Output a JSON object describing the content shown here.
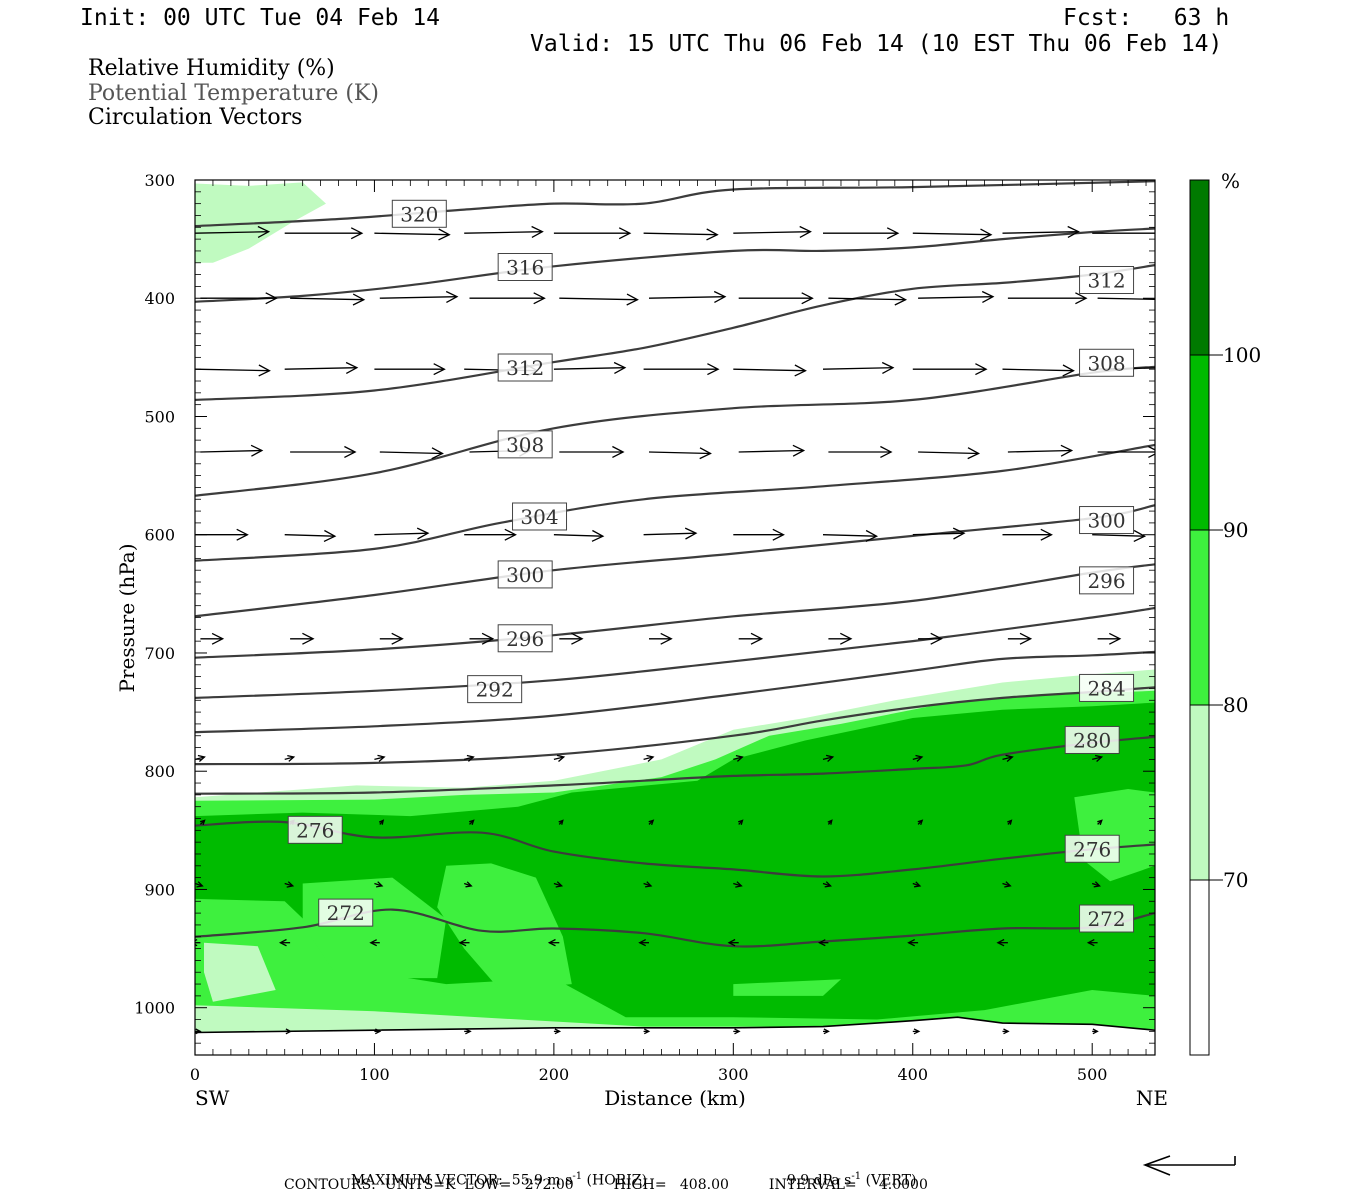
{
  "header": {
    "init": "Init: 00 UTC Tue 04 Feb 14",
    "fcst": "Fcst:   63 h",
    "valid": "Valid: 15 UTC Thu 06 Feb 14 (10 EST Thu 06 Feb 14)"
  },
  "legend": {
    "line1": "Relative Humidity (%)",
    "line2": "Potential Temperature (K)",
    "line3": "Circulation Vectors"
  },
  "footer": {
    "max_vector_label": "MAXIMUM VECTOR:",
    "horiz": "55.9 m s",
    "horiz_sup": "-1",
    "horiz_unit": "(HORIZ)",
    "vert": "9.9 dPa s",
    "vert_sup": "-1",
    "vert_unit": "(VERT)",
    "contours": "CONTOURS:  UNITS=K  LOW=   272.00         HIGH=   408.00         INTERVAL=     4.0000"
  },
  "colors": {
    "rh70": "#c0fac0",
    "rh80": "#3ef03e",
    "rh90": "#00bb00",
    "rh100": "#007a00",
    "theta_line": "#3c3c3c",
    "vector": "#000000"
  },
  "chart_data": {
    "type": "cross-section",
    "xlabel": "Distance (km)",
    "ylabel": "Pressure (hPa)",
    "x_left_label": "SW",
    "x_right_label": "NE",
    "xlim": [
      0,
      535
    ],
    "ylim": [
      1040,
      300
    ],
    "x_ticks": [
      0,
      100,
      200,
      300,
      400,
      500
    ],
    "y_ticks": [
      300,
      400,
      500,
      600,
      700,
      800,
      900,
      1000
    ],
    "colorbar": {
      "unit": "%",
      "levels": [
        70,
        80,
        90,
        100
      ],
      "colors": [
        "#ffffff",
        "#c0fac0",
        "#3ef03e",
        "#00bb00",
        "#007a00"
      ]
    },
    "surface": [
      [
        0,
        1021
      ],
      [
        100,
        1019
      ],
      [
        200,
        1017
      ],
      [
        300,
        1017
      ],
      [
        350,
        1016
      ],
      [
        400,
        1011
      ],
      [
        425,
        1008
      ],
      [
        450,
        1013
      ],
      [
        500,
        1014
      ],
      [
        535,
        1019
      ]
    ],
    "rh_regions": [
      {
        "level": 70,
        "points": [
          [
            0,
            303
          ],
          [
            30,
            305
          ],
          [
            60,
            302
          ],
          [
            73,
            320
          ],
          [
            55,
            335
          ],
          [
            30,
            358
          ],
          [
            10,
            370
          ],
          [
            0,
            370
          ]
        ]
      },
      {
        "level": 70,
        "points": [
          [
            0,
            822
          ],
          [
            90,
            812
          ],
          [
            150,
            814
          ],
          [
            200,
            808
          ],
          [
            260,
            790
          ],
          [
            300,
            765
          ],
          [
            340,
            755
          ],
          [
            390,
            740
          ],
          [
            450,
            725
          ],
          [
            500,
            718
          ],
          [
            535,
            714
          ],
          [
            535,
            1022
          ],
          [
            200,
            1018
          ],
          [
            0,
            1022
          ]
        ]
      },
      {
        "level": 80,
        "points": [
          [
            0,
            825
          ],
          [
            100,
            824
          ],
          [
            150,
            820
          ],
          [
            200,
            818
          ],
          [
            260,
            805
          ],
          [
            290,
            790
          ],
          [
            320,
            770
          ],
          [
            360,
            760
          ],
          [
            420,
            742
          ],
          [
            480,
            735
          ],
          [
            535,
            732
          ],
          [
            535,
            1018
          ],
          [
            400,
            1016
          ],
          [
            250,
            1016
          ],
          [
            100,
            1003
          ],
          [
            0,
            998
          ]
        ]
      },
      {
        "level": 90,
        "points": [
          [
            0,
            838
          ],
          [
            60,
            835
          ],
          [
            120,
            838
          ],
          [
            180,
            830
          ],
          [
            210,
            818
          ],
          [
            280,
            808
          ],
          [
            300,
            790
          ],
          [
            340,
            774
          ],
          [
            400,
            755
          ],
          [
            450,
            748
          ],
          [
            500,
            745
          ],
          [
            535,
            742
          ],
          [
            535,
            990
          ],
          [
            500,
            985
          ],
          [
            440,
            1002
          ],
          [
            380,
            1010
          ],
          [
            300,
            1008
          ],
          [
            240,
            1008
          ],
          [
            200,
            975
          ],
          [
            140,
            980
          ],
          [
            90,
            968
          ],
          [
            50,
            910
          ],
          [
            0,
            908
          ]
        ]
      },
      {
        "level": 80,
        "points": [
          [
            60,
            895
          ],
          [
            110,
            890
          ],
          [
            140,
            925
          ],
          [
            135,
            975
          ],
          [
            80,
            975
          ],
          [
            60,
            930
          ]
        ]
      },
      {
        "level": 80,
        "points": [
          [
            140,
            880
          ],
          [
            165,
            878
          ],
          [
            190,
            890
          ],
          [
            205,
            940
          ],
          [
            210,
            980
          ],
          [
            170,
            985
          ],
          [
            150,
            950
          ],
          [
            135,
            915
          ]
        ]
      },
      {
        "level": 70,
        "points": [
          [
            5,
            945
          ],
          [
            35,
            948
          ],
          [
            45,
            985
          ],
          [
            10,
            995
          ],
          [
            5,
            970
          ]
        ]
      },
      {
        "level": 80,
        "points": [
          [
            490,
            822
          ],
          [
            520,
            815
          ],
          [
            535,
            818
          ],
          [
            535,
            880
          ],
          [
            510,
            893
          ],
          [
            495,
            875
          ]
        ]
      },
      {
        "level": 80,
        "points": [
          [
            300,
            980
          ],
          [
            360,
            976
          ],
          [
            350,
            990
          ],
          [
            300,
            990
          ]
        ]
      }
    ],
    "theta_lines": [
      {
        "value": 272,
        "points": [
          [
            0,
            940
          ],
          [
            60,
            932
          ],
          [
            110,
            917
          ],
          [
            160,
            935
          ],
          [
            200,
            933
          ],
          [
            250,
            937
          ],
          [
            300,
            948
          ],
          [
            350,
            944
          ],
          [
            400,
            939
          ],
          [
            450,
            933
          ],
          [
            500,
            932
          ],
          [
            535,
            920
          ]
        ]
      },
      {
        "value": 276,
        "points": [
          [
            0,
            846
          ],
          [
            50,
            843
          ],
          [
            100,
            856
          ],
          [
            160,
            852
          ],
          [
            200,
            868
          ],
          [
            250,
            878
          ],
          [
            300,
            883
          ],
          [
            350,
            889
          ],
          [
            400,
            883
          ],
          [
            450,
            874
          ],
          [
            500,
            866
          ],
          [
            535,
            862
          ]
        ]
      },
      {
        "value": 280,
        "points": [
          [
            0,
            819
          ],
          [
            100,
            818
          ],
          [
            200,
            812
          ],
          [
            250,
            808
          ],
          [
            300,
            804
          ],
          [
            350,
            802
          ],
          [
            400,
            798
          ],
          [
            430,
            795
          ],
          [
            450,
            786
          ],
          [
            500,
            776
          ],
          [
            535,
            771
          ]
        ]
      },
      {
        "value": 284,
        "points": [
          [
            0,
            794
          ],
          [
            100,
            793
          ],
          [
            200,
            786
          ],
          [
            300,
            770
          ],
          [
            350,
            757
          ],
          [
            400,
            746
          ],
          [
            450,
            738
          ],
          [
            500,
            733
          ],
          [
            535,
            729
          ]
        ]
      },
      {
        "value": 288,
        "points": [
          [
            0,
            767
          ],
          [
            100,
            762
          ],
          [
            200,
            753
          ],
          [
            300,
            735
          ],
          [
            400,
            715
          ],
          [
            450,
            705
          ],
          [
            500,
            702
          ],
          [
            535,
            699
          ]
        ]
      },
      {
        "value": 292,
        "points": [
          [
            0,
            738
          ],
          [
            100,
            732
          ],
          [
            200,
            723
          ],
          [
            300,
            707
          ],
          [
            400,
            690
          ],
          [
            500,
            670
          ],
          [
            535,
            662
          ]
        ]
      },
      {
        "value": 296,
        "points": [
          [
            0,
            704
          ],
          [
            100,
            697
          ],
          [
            200,
            685
          ],
          [
            300,
            669
          ],
          [
            400,
            656
          ],
          [
            500,
            632
          ],
          [
            535,
            625
          ]
        ]
      },
      {
        "value": 300,
        "points": [
          [
            0,
            669
          ],
          [
            100,
            651
          ],
          [
            200,
            630
          ],
          [
            300,
            616
          ],
          [
            400,
            601
          ],
          [
            500,
            586
          ],
          [
            535,
            575
          ]
        ]
      },
      {
        "value": 304,
        "points": [
          [
            0,
            622
          ],
          [
            100,
            612
          ],
          [
            170,
            590
          ],
          [
            250,
            570
          ],
          [
            350,
            559
          ],
          [
            450,
            546
          ],
          [
            535,
            524
          ]
        ]
      },
      {
        "value": 308,
        "points": [
          [
            0,
            567
          ],
          [
            100,
            548
          ],
          [
            200,
            510
          ],
          [
            300,
            493
          ],
          [
            400,
            486
          ],
          [
            500,
            463
          ],
          [
            535,
            458
          ]
        ]
      },
      {
        "value": 312,
        "points": [
          [
            0,
            486
          ],
          [
            100,
            478
          ],
          [
            200,
            454
          ],
          [
            250,
            442
          ],
          [
            300,
            425
          ],
          [
            350,
            406
          ],
          [
            400,
            392
          ],
          [
            450,
            387
          ],
          [
            500,
            380
          ],
          [
            535,
            372
          ]
        ]
      },
      {
        "value": 316,
        "points": [
          [
            0,
            403
          ],
          [
            60,
            398
          ],
          [
            120,
            389
          ],
          [
            200,
            373
          ],
          [
            300,
            360
          ],
          [
            350,
            360
          ],
          [
            400,
            357
          ],
          [
            450,
            350
          ],
          [
            500,
            344
          ],
          [
            535,
            341
          ]
        ]
      },
      {
        "value": 320,
        "points": [
          [
            0,
            339
          ],
          [
            80,
            333
          ],
          [
            150,
            325
          ],
          [
            200,
            320
          ],
          [
            250,
            320
          ],
          [
            300,
            308
          ],
          [
            400,
            306
          ],
          [
            535,
            301
          ]
        ]
      }
    ],
    "theta_labels": [
      {
        "text": "320",
        "x": 125,
        "p": 329
      },
      {
        "text": "316",
        "x": 184,
        "p": 374
      },
      {
        "text": "312",
        "x": 184,
        "p": 459
      },
      {
        "text": "308",
        "x": 184,
        "p": 524
      },
      {
        "text": "304",
        "x": 192,
        "p": 585
      },
      {
        "text": "300",
        "x": 184,
        "p": 634
      },
      {
        "text": "296",
        "x": 184,
        "p": 688
      },
      {
        "text": "292",
        "x": 167,
        "p": 731
      },
      {
        "text": "276",
        "x": 67,
        "p": 850
      },
      {
        "text": "272",
        "x": 84,
        "p": 920
      },
      {
        "text": "312",
        "x": 508,
        "p": 385
      },
      {
        "text": "308",
        "x": 508,
        "p": 455
      },
      {
        "text": "300",
        "x": 508,
        "p": 588
      },
      {
        "text": "296",
        "x": 508,
        "p": 639
      },
      {
        "text": "284",
        "x": 508,
        "p": 730
      },
      {
        "text": "280",
        "x": 500,
        "p": 774
      },
      {
        "text": "276",
        "x": 500,
        "p": 866
      },
      {
        "text": "272",
        "x": 508,
        "p": 925
      }
    ],
    "vector_rows": [
      {
        "p": 345,
        "u": 40,
        "v": 0.0
      },
      {
        "p": 400,
        "u": 40,
        "v": 0.0
      },
      {
        "p": 460,
        "u": 38,
        "v": 0.0
      },
      {
        "p": 530,
        "u": 33,
        "v": 0.0
      },
      {
        "p": 600,
        "u": 27,
        "v": 0.0
      },
      {
        "p": 688,
        "u": 12,
        "v": 0.0
      },
      {
        "p": 790,
        "u": 5,
        "v": 0.3
      },
      {
        "p": 845,
        "u": 2,
        "v": 0.5
      },
      {
        "p": 895,
        "u": 4,
        "v": -0.3
      },
      {
        "p": 945,
        "u": -5,
        "v": 0.0
      },
      {
        "p": 1020,
        "u": 3,
        "v": 0.0
      }
    ],
    "max_vector_arrow": {
      "dx_km": -52,
      "note": "reference"
    }
  }
}
